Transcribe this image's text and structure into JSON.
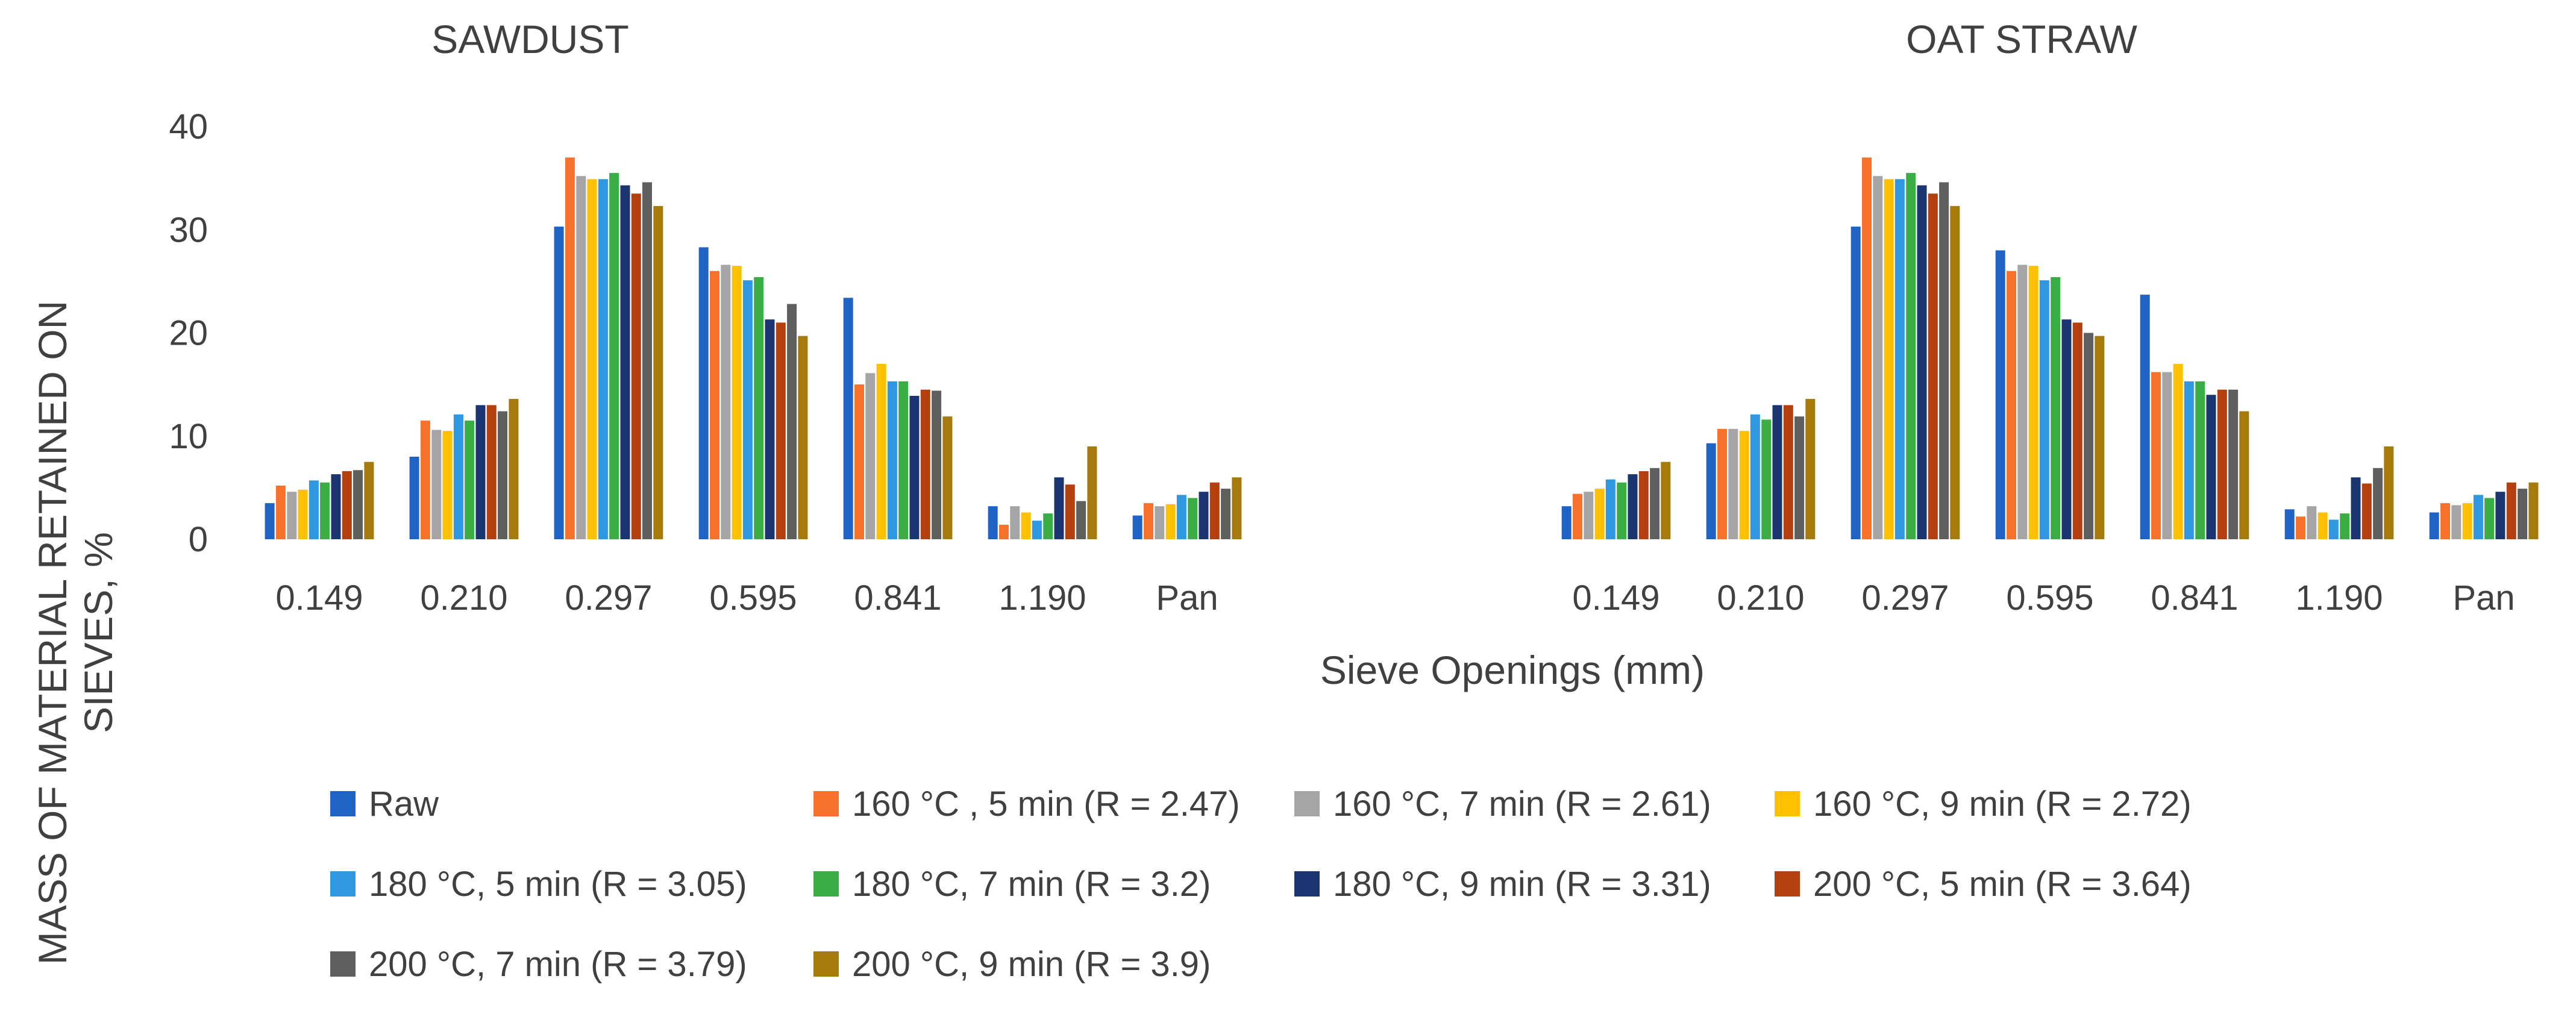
{
  "chart_data": {
    "type": "bar",
    "xlabel": "Sieve Openings (mm)",
    "ylabel_lines": [
      "MASS OF MATERIAL RETAINED ON",
      "SIEVES, %"
    ],
    "ylim": [
      0,
      40
    ],
    "yticks": [
      0,
      10,
      20,
      30,
      40
    ],
    "grid": false,
    "legend_position": "bottom",
    "legend_layout_columns": 4,
    "categories": [
      "0.149",
      "0.210",
      "0.297",
      "0.595",
      "0.841",
      "1.190",
      "Pan"
    ],
    "series_styles": [
      {
        "name": "Raw",
        "color": "#1f63c4"
      },
      {
        "name": "160 °C , 5 min (R = 2.47)",
        "color": "#f6722d"
      },
      {
        "name": "160 °C, 7 min (R = 2.61)",
        "color": "#a5a5a5"
      },
      {
        "name": "160 °C, 9 min (R = 2.72)",
        "color": "#ffc000"
      },
      {
        "name": "180 °C, 5 min (R = 3.05)",
        "color": "#2f98e0"
      },
      {
        "name": "180 °C, 7 min (R = 3.2)",
        "color": "#3aae44"
      },
      {
        "name": "180 °C, 9 min (R = 3.31)",
        "color": "#1a3572"
      },
      {
        "name": "200 °C, 5 min (R = 3.64)",
        "color": "#b3410f"
      },
      {
        "name": "200 °C, 7 min (R = 3.79)",
        "color": "#5f5f5f"
      },
      {
        "name": "200 °C, 9 min (R = 3.9)",
        "color": "#a67b0b"
      }
    ],
    "panels": [
      {
        "title": "SAWDUST",
        "series": [
          {
            "name": "Raw",
            "values": [
              3.5,
              8.0,
              30.3,
              28.3,
              23.4,
              3.2,
              2.3
            ]
          },
          {
            "name": "160 °C , 5 min (R = 2.47)",
            "values": [
              5.2,
              11.5,
              37.0,
              26.0,
              15.0,
              1.4,
              3.5
            ]
          },
          {
            "name": "160 °C, 7 min (R = 2.61)",
            "values": [
              4.6,
              10.6,
              35.2,
              26.6,
              16.1,
              3.2,
              3.2
            ]
          },
          {
            "name": "160 °C, 9 min (R = 2.72)",
            "values": [
              4.8,
              10.5,
              34.9,
              26.5,
              17.0,
              2.6,
              3.4
            ]
          },
          {
            "name": "180 °C, 5 min (R = 3.05)",
            "values": [
              5.7,
              12.1,
              34.9,
              25.1,
              15.3,
              1.8,
              4.3
            ]
          },
          {
            "name": "180 °C, 7 min (R = 3.2)",
            "values": [
              5.5,
              11.5,
              35.5,
              25.4,
              15.3,
              2.5,
              4.0
            ]
          },
          {
            "name": "180 °C, 9 min (R = 3.31)",
            "values": [
              6.3,
              13.0,
              34.3,
              21.3,
              13.9,
              6.0,
              4.6
            ]
          },
          {
            "name": "200 °C, 5 min (R = 3.64)",
            "values": [
              6.6,
              13.0,
              33.5,
              21.0,
              14.5,
              5.3,
              5.5
            ]
          },
          {
            "name": "200 °C, 7 min (R = 3.79)",
            "values": [
              6.7,
              12.4,
              34.6,
              22.8,
              14.4,
              3.7,
              4.9
            ]
          },
          {
            "name": "200 °C, 9 min (R = 3.9)",
            "values": [
              7.5,
              13.6,
              32.3,
              19.7,
              11.9,
              9.0,
              6.0
            ]
          }
        ]
      },
      {
        "title": "OAT STRAW",
        "series": [
          {
            "name": "Raw",
            "values": [
              3.2,
              9.3,
              30.3,
              28.0,
              23.7,
              2.9,
              2.6
            ]
          },
          {
            "name": "160 °C , 5 min (R = 2.47)",
            "values": [
              4.4,
              10.7,
              37.0,
              26.0,
              16.2,
              2.2,
              3.5
            ]
          },
          {
            "name": "160 °C, 7 min (R = 2.61)",
            "values": [
              4.6,
              10.7,
              35.2,
              26.6,
              16.2,
              3.2,
              3.3
            ]
          },
          {
            "name": "160 °C, 9 min (R = 2.72)",
            "values": [
              4.9,
              10.5,
              34.9,
              26.5,
              17.0,
              2.6,
              3.5
            ]
          },
          {
            "name": "180 °C, 5 min (R = 3.05)",
            "values": [
              5.8,
              12.1,
              34.9,
              25.1,
              15.3,
              1.9,
              4.3
            ]
          },
          {
            "name": "180 °C, 7 min (R = 3.2)",
            "values": [
              5.5,
              11.6,
              35.5,
              25.4,
              15.3,
              2.5,
              4.0
            ]
          },
          {
            "name": "180 °C, 9 min (R = 3.31)",
            "values": [
              6.3,
              13.0,
              34.3,
              21.3,
              14.0,
              6.0,
              4.6
            ]
          },
          {
            "name": "200 °C, 5 min (R = 3.64)",
            "values": [
              6.6,
              13.0,
              33.5,
              21.0,
              14.5,
              5.4,
              5.5
            ]
          },
          {
            "name": "200 °C, 7 min (R = 3.79)",
            "values": [
              6.9,
              11.9,
              34.6,
              20.0,
              14.5,
              6.9,
              4.9
            ]
          },
          {
            "name": "200 °C, 9 min (R = 3.9)",
            "values": [
              7.5,
              13.6,
              32.3,
              19.7,
              12.4,
              9.0,
              5.5
            ]
          }
        ]
      }
    ]
  }
}
